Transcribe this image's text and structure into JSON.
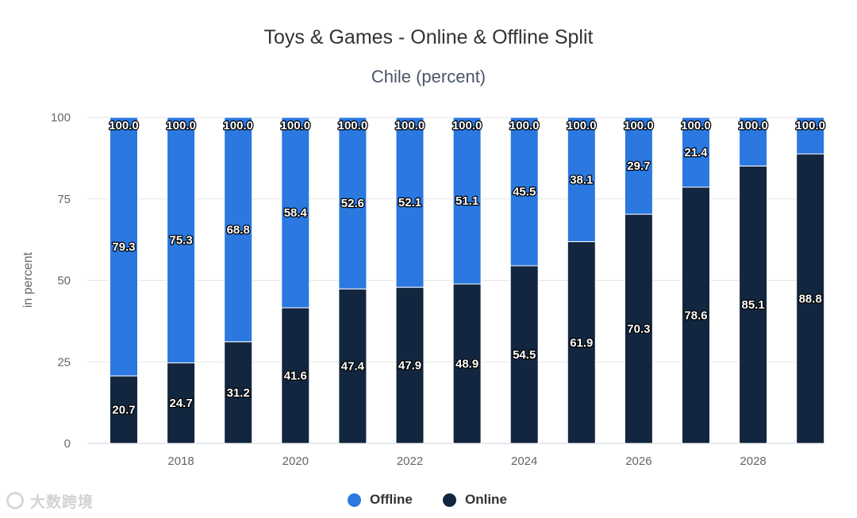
{
  "chart_data": {
    "type": "bar",
    "stacked": true,
    "title": "Toys & Games - Online & Offline Split",
    "subtitle": "Chile (percent)",
    "xlabel": "",
    "ylabel": "in percent",
    "ylim": [
      0,
      100
    ],
    "yticks": [
      0,
      25,
      50,
      75,
      100
    ],
    "categories": [
      "2017",
      "2018",
      "2019",
      "2020",
      "2021",
      "2022",
      "2023",
      "2024",
      "2025",
      "2026",
      "2027",
      "2028",
      "2029"
    ],
    "xtick_labels": [
      "2018",
      "2020",
      "2022",
      "2024",
      "2026",
      "2028"
    ],
    "series": [
      {
        "name": "Online",
        "color": "#13263f",
        "values": [
          20.7,
          24.7,
          31.2,
          41.6,
          47.4,
          47.9,
          48.9,
          54.5,
          61.9,
          70.3,
          78.6,
          85.1,
          88.8
        ]
      },
      {
        "name": "Offline",
        "color": "#2a78e0",
        "values": [
          79.3,
          75.3,
          68.8,
          58.4,
          52.6,
          52.1,
          51.1,
          45.5,
          38.1,
          29.7,
          21.4,
          14.9,
          11.2
        ],
        "labels": [
          "79.3",
          "75.3",
          "68.8",
          "58.4",
          "52.6",
          "52.1",
          "51.1",
          "45.5",
          "38.1",
          "29.7",
          "21.4",
          null,
          null
        ]
      }
    ],
    "totals_label": "100.0",
    "grid": true,
    "legend_position": "bottom-center",
    "legend": [
      {
        "name": "Offline",
        "color": "#2a78e0"
      },
      {
        "name": "Online",
        "color": "#13263f"
      }
    ]
  },
  "watermark": {
    "text": "大数跨境",
    "icon": "watermark-logo-icon"
  }
}
